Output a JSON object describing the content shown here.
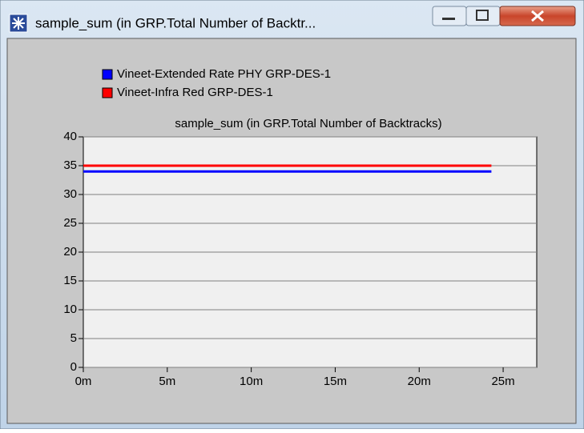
{
  "window": {
    "title": "sample_sum (in GRP.Total Number of Backtr..."
  },
  "chart_data": {
    "type": "line",
    "title": "sample_sum (in GRP.Total Number of Backtracks)",
    "x": [
      0,
      24.3
    ],
    "series": [
      {
        "name": "Vineet-Extended Rate PHY GRP-DES-1",
        "color": "#0000ff",
        "values": [
          34,
          34
        ]
      },
      {
        "name": "Vineet-Infra Red GRP-DES-1",
        "color": "#ff0000",
        "values": [
          35,
          35
        ]
      }
    ],
    "xlim": [
      0,
      27
    ],
    "xticks": [
      {
        "value": 0,
        "label": "0m"
      },
      {
        "value": 5,
        "label": "5m"
      },
      {
        "value": 10,
        "label": "10m"
      },
      {
        "value": 15,
        "label": "15m"
      },
      {
        "value": 20,
        "label": "20m"
      },
      {
        "value": 25,
        "label": "25m"
      }
    ],
    "ylim": [
      0,
      40
    ],
    "yticks": [
      0,
      5,
      10,
      15,
      20,
      25,
      30,
      35,
      40
    ],
    "grid": true
  }
}
